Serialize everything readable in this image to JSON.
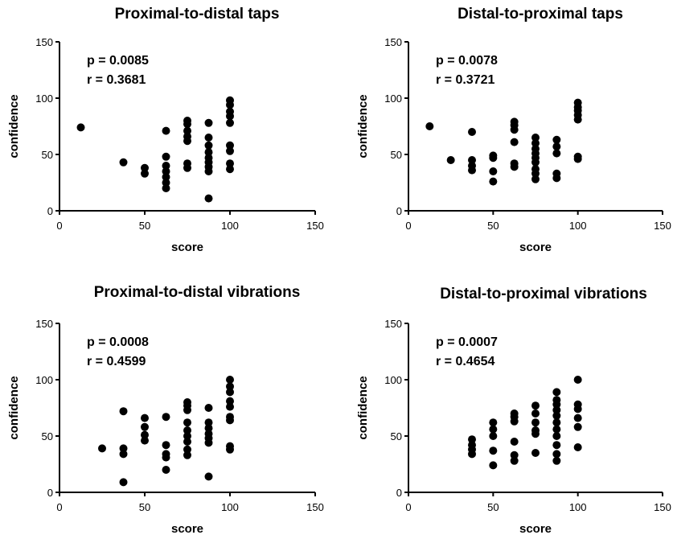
{
  "chart_data": [
    {
      "type": "scatter",
      "title": "Proximal-to-distal taps",
      "xlabel": "score",
      "ylabel": "confidence",
      "xlim": [
        0,
        150
      ],
      "ylim": [
        0,
        150
      ],
      "xticks": [
        "0",
        "50",
        "100",
        "150"
      ],
      "yticks": [
        "0",
        "50",
        "100",
        "150"
      ],
      "stat_p": "p = 0.0085",
      "stat_r": "r = 0.3681",
      "points": [
        [
          12.5,
          74
        ],
        [
          37.5,
          43
        ],
        [
          50,
          38
        ],
        [
          50,
          33
        ],
        [
          62.5,
          71
        ],
        [
          62.5,
          48
        ],
        [
          62.5,
          40
        ],
        [
          62.5,
          35
        ],
        [
          62.5,
          30
        ],
        [
          62.5,
          25
        ],
        [
          62.5,
          20
        ],
        [
          75,
          80
        ],
        [
          75,
          77
        ],
        [
          75,
          71
        ],
        [
          75,
          66
        ],
        [
          75,
          62
        ],
        [
          75,
          42
        ],
        [
          75,
          38
        ],
        [
          87.5,
          78
        ],
        [
          87.5,
          65
        ],
        [
          87.5,
          58
        ],
        [
          87.5,
          52
        ],
        [
          87.5,
          47
        ],
        [
          87.5,
          43
        ],
        [
          87.5,
          39
        ],
        [
          87.5,
          35
        ],
        [
          87.5,
          11
        ],
        [
          100,
          98
        ],
        [
          100,
          94
        ],
        [
          100,
          88
        ],
        [
          100,
          84
        ],
        [
          100,
          78
        ],
        [
          100,
          58
        ],
        [
          100,
          53
        ],
        [
          100,
          42
        ],
        [
          100,
          37
        ]
      ]
    },
    {
      "type": "scatter",
      "title": "Distal-to-proximal taps",
      "xlabel": "score",
      "ylabel": "confidence",
      "xlim": [
        0,
        150
      ],
      "ylim": [
        0,
        150
      ],
      "xticks": [
        "0",
        "50",
        "100",
        "150"
      ],
      "yticks": [
        "0",
        "50",
        "100",
        "150"
      ],
      "stat_p": "p = 0.0078",
      "stat_r": "r = 0.3721",
      "points": [
        [
          12.5,
          75
        ],
        [
          25,
          45
        ],
        [
          37.5,
          70
        ],
        [
          37.5,
          45
        ],
        [
          37.5,
          40
        ],
        [
          37.5,
          36
        ],
        [
          50,
          49
        ],
        [
          50,
          47
        ],
        [
          50,
          35
        ],
        [
          50,
          26
        ],
        [
          62.5,
          79
        ],
        [
          62.5,
          76
        ],
        [
          62.5,
          72
        ],
        [
          62.5,
          61
        ],
        [
          62.5,
          42
        ],
        [
          62.5,
          39
        ],
        [
          75,
          65
        ],
        [
          75,
          60
        ],
        [
          75,
          55
        ],
        [
          75,
          51
        ],
        [
          75,
          47
        ],
        [
          75,
          43
        ],
        [
          75,
          37
        ],
        [
          75,
          33
        ],
        [
          75,
          28
        ],
        [
          87.5,
          63
        ],
        [
          87.5,
          57
        ],
        [
          87.5,
          51
        ],
        [
          87.5,
          33
        ],
        [
          87.5,
          29
        ],
        [
          100,
          96
        ],
        [
          100,
          92
        ],
        [
          100,
          89
        ],
        [
          100,
          85
        ],
        [
          100,
          81
        ],
        [
          100,
          48
        ],
        [
          100,
          46
        ]
      ]
    },
    {
      "type": "scatter",
      "title": "Proximal-to-distal vibrations",
      "xlabel": "score",
      "ylabel": "confidence",
      "xlim": [
        0,
        150
      ],
      "ylim": [
        0,
        150
      ],
      "xticks": [
        "0",
        "50",
        "100",
        "150"
      ],
      "yticks": [
        "0",
        "50",
        "100",
        "150"
      ],
      "stat_p": "p = 0.0008",
      "stat_r": "r = 0.4599",
      "points": [
        [
          25,
          39
        ],
        [
          37.5,
          72
        ],
        [
          37.5,
          39
        ],
        [
          37.5,
          34
        ],
        [
          37.5,
          9
        ],
        [
          50,
          66
        ],
        [
          50,
          58
        ],
        [
          50,
          51
        ],
        [
          50,
          46
        ],
        [
          62.5,
          67
        ],
        [
          62.5,
          42
        ],
        [
          62.5,
          34
        ],
        [
          62.5,
          31
        ],
        [
          62.5,
          20
        ],
        [
          75,
          80
        ],
        [
          75,
          77
        ],
        [
          75,
          73
        ],
        [
          75,
          62
        ],
        [
          75,
          55
        ],
        [
          75,
          50
        ],
        [
          75,
          45
        ],
        [
          75,
          38
        ],
        [
          75,
          33
        ],
        [
          87.5,
          75
        ],
        [
          87.5,
          62
        ],
        [
          87.5,
          57
        ],
        [
          87.5,
          52
        ],
        [
          87.5,
          48
        ],
        [
          87.5,
          44
        ],
        [
          87.5,
          14
        ],
        [
          100,
          100
        ],
        [
          100,
          94
        ],
        [
          100,
          89
        ],
        [
          100,
          81
        ],
        [
          100,
          76
        ],
        [
          100,
          67
        ],
        [
          100,
          64
        ],
        [
          100,
          41
        ],
        [
          100,
          38
        ]
      ]
    },
    {
      "type": "scatter",
      "title": "Distal-to-proximal vibrations",
      "xlabel": "score",
      "ylabel": "confidence",
      "xlim": [
        0,
        150
      ],
      "ylim": [
        0,
        150
      ],
      "xticks": [
        "0",
        "50",
        "100",
        "150"
      ],
      "yticks": [
        "0",
        "50",
        "100",
        "150"
      ],
      "stat_p": "p = 0.0007",
      "stat_r": "r = 0.4654",
      "points": [
        [
          37.5,
          47
        ],
        [
          37.5,
          42
        ],
        [
          37.5,
          38
        ],
        [
          37.5,
          34
        ],
        [
          50,
          62
        ],
        [
          50,
          56
        ],
        [
          50,
          50
        ],
        [
          50,
          37
        ],
        [
          50,
          24
        ],
        [
          62.5,
          70
        ],
        [
          62.5,
          67
        ],
        [
          62.5,
          63
        ],
        [
          62.5,
          45
        ],
        [
          62.5,
          33
        ],
        [
          62.5,
          28
        ],
        [
          75,
          77
        ],
        [
          75,
          70
        ],
        [
          75,
          62
        ],
        [
          75,
          55
        ],
        [
          75,
          52
        ],
        [
          75,
          35
        ],
        [
          87.5,
          89
        ],
        [
          87.5,
          82
        ],
        [
          87.5,
          78
        ],
        [
          87.5,
          73
        ],
        [
          87.5,
          68
        ],
        [
          87.5,
          62
        ],
        [
          87.5,
          56
        ],
        [
          87.5,
          50
        ],
        [
          87.5,
          42
        ],
        [
          87.5,
          34
        ],
        [
          87.5,
          28
        ],
        [
          100,
          100
        ],
        [
          100,
          78
        ],
        [
          100,
          74
        ],
        [
          100,
          66
        ],
        [
          100,
          58
        ],
        [
          100,
          40
        ]
      ]
    }
  ]
}
